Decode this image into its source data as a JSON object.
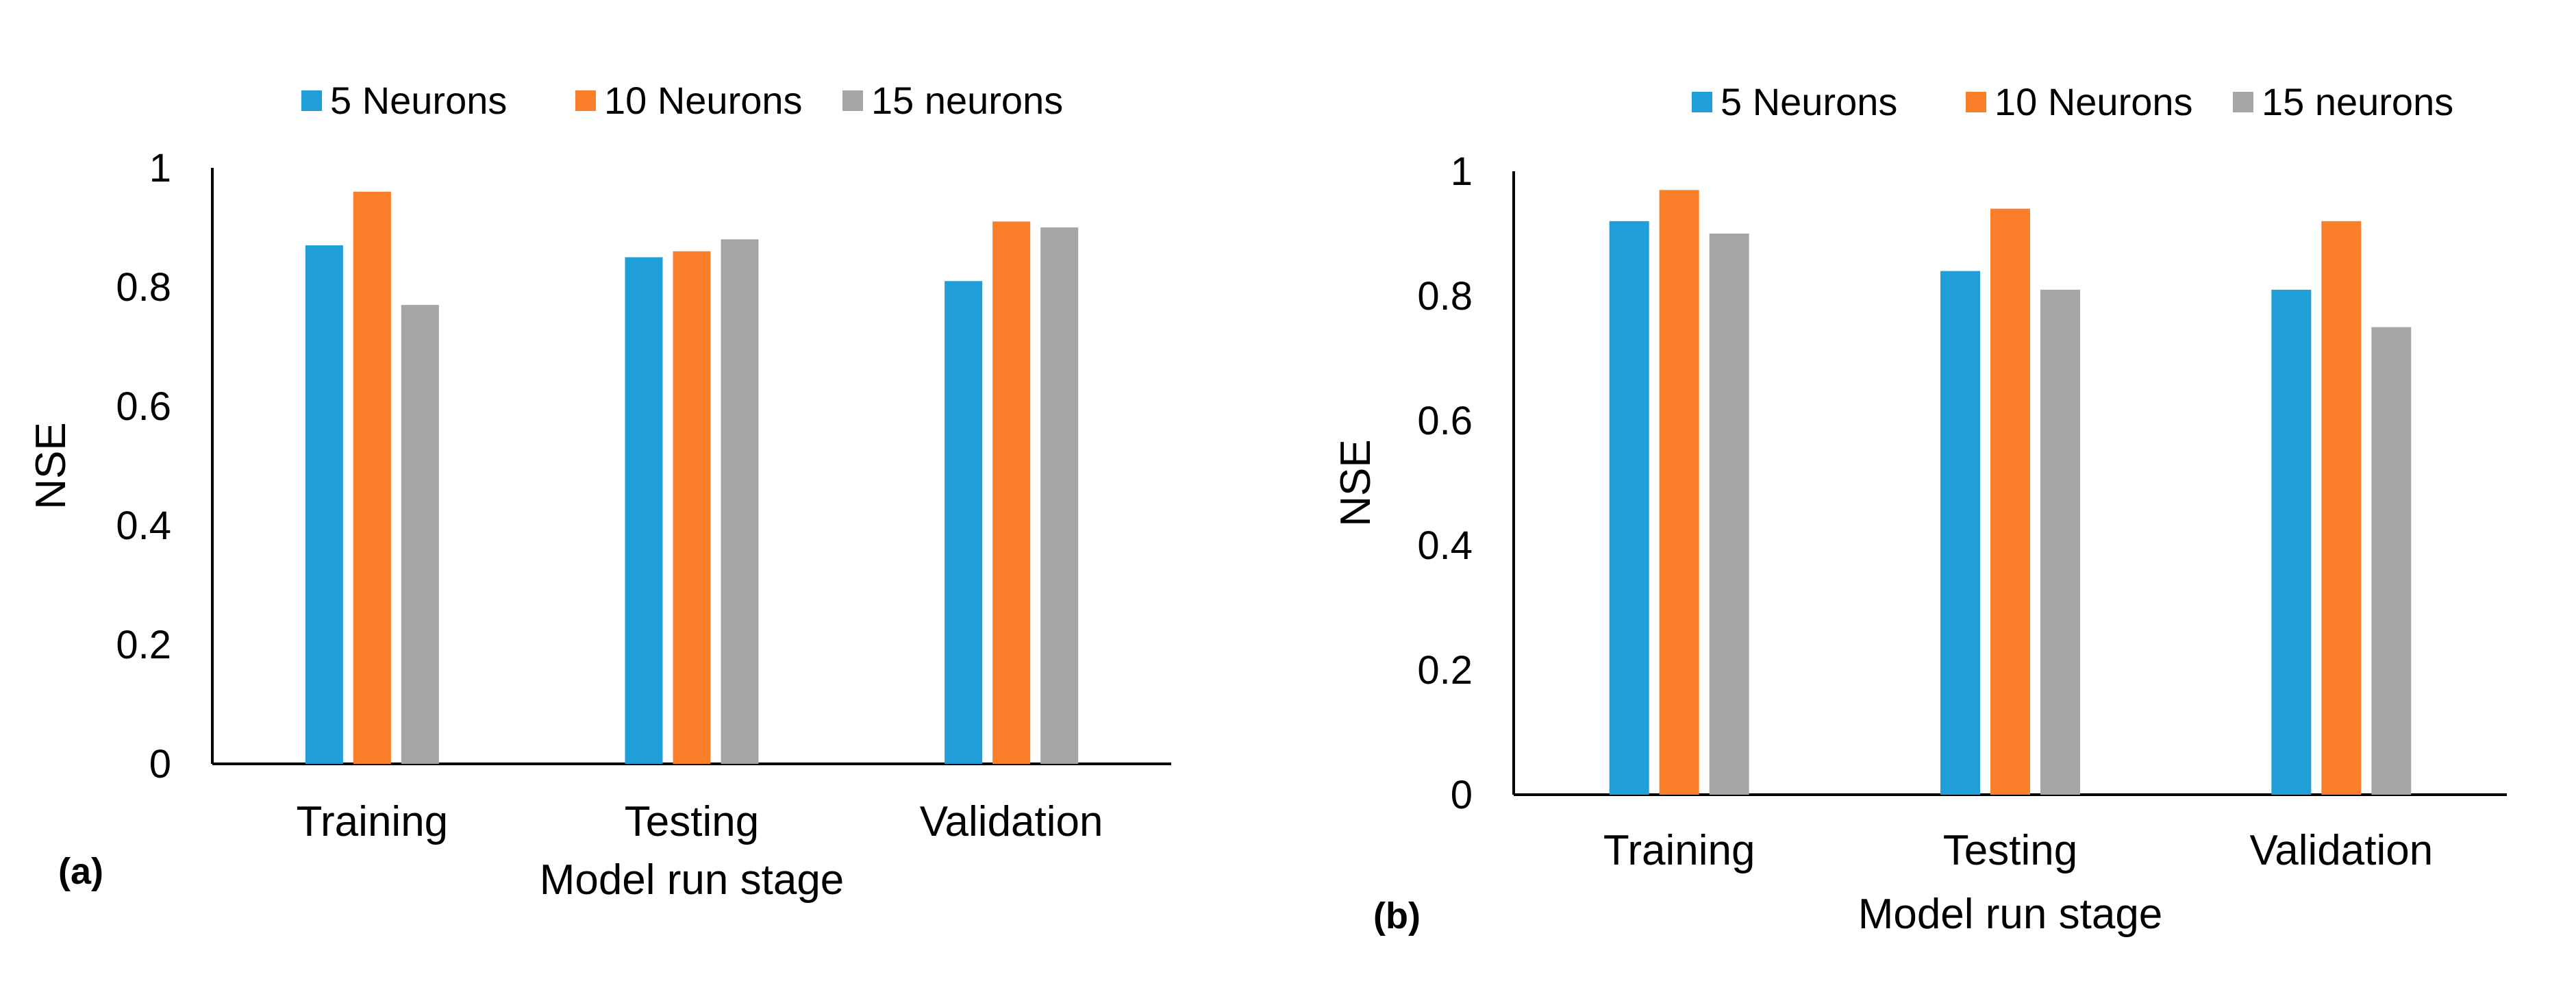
{
  "chart_data": [
    {
      "type": "bar",
      "panel_label": "(a)",
      "title": "",
      "categories": [
        "Training",
        "Testing",
        "Validation"
      ],
      "series": [
        {
          "name": "5 Neurons",
          "color": "#1f9ed8",
          "values": [
            0.87,
            0.85,
            0.81
          ]
        },
        {
          "name": "10 Neurons",
          "color": "#fb7f2b",
          "values": [
            0.96,
            0.86,
            0.91
          ]
        },
        {
          "name": "15 neurons",
          "color": "#a5a5a5",
          "values": [
            0.77,
            0.88,
            0.9
          ]
        }
      ],
      "xlabel": "Model run stage",
      "ylabel": "NSE",
      "ylim": [
        0,
        1
      ],
      "yticks": [
        "0",
        "0.2",
        "0.4",
        "0.6",
        "0.8",
        "1"
      ],
      "grid": false,
      "legend": "top"
    },
    {
      "type": "bar",
      "panel_label": "(b)",
      "title": "",
      "categories": [
        "Training",
        "Testing",
        "Validation"
      ],
      "series": [
        {
          "name": "5 Neurons",
          "color": "#1f9ed8",
          "values": [
            0.92,
            0.84,
            0.81
          ]
        },
        {
          "name": "10 Neurons",
          "color": "#fb7f2b",
          "values": [
            0.97,
            0.94,
            0.92
          ]
        },
        {
          "name": "15 neurons",
          "color": "#a5a5a5",
          "values": [
            0.9,
            0.81,
            0.75
          ]
        }
      ],
      "xlabel": "Model run stage",
      "ylabel": "NSE",
      "ylim": [
        0,
        1
      ],
      "yticks": [
        "0",
        "0.2",
        "0.4",
        "0.6",
        "0.8",
        "1"
      ],
      "grid": false,
      "legend": "top"
    }
  ]
}
